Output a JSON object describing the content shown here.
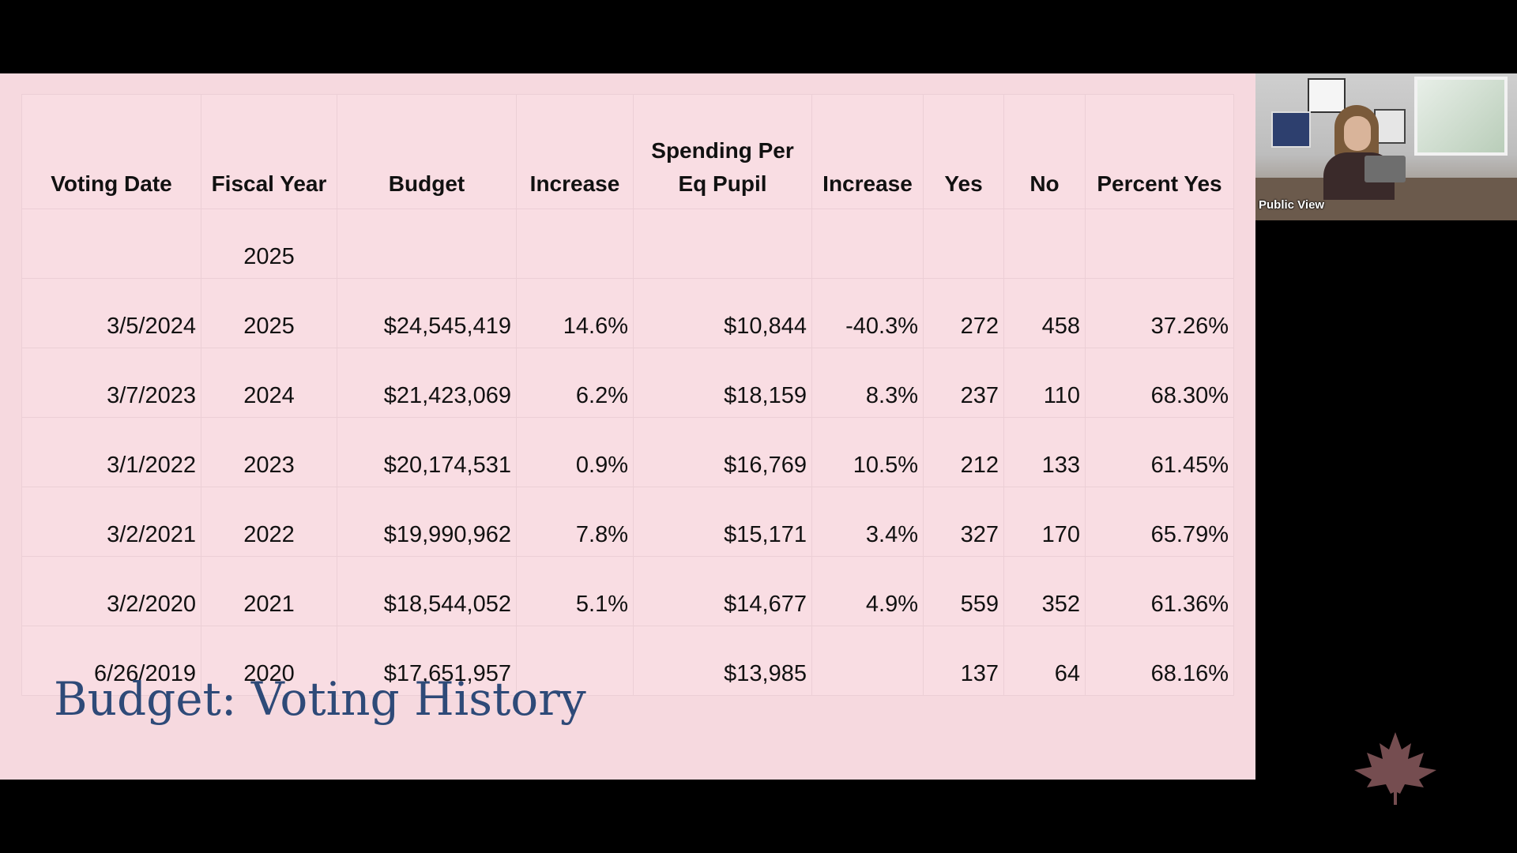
{
  "slide": {
    "title": "Budget: Voting History",
    "table": {
      "headers": [
        "Voting Date",
        "Fiscal Year",
        "Budget",
        "Increase",
        "Spending Per Eq Pupil",
        "Increase",
        "Yes",
        "No",
        "Percent Yes"
      ],
      "rows": [
        [
          "",
          "2025",
          "",
          "",
          "",
          "",
          "",
          "",
          ""
        ],
        [
          "3/5/2024",
          "2025",
          "$24,545,419",
          "14.6%",
          "$10,844",
          "-40.3%",
          "272",
          "458",
          "37.26%"
        ],
        [
          "3/7/2023",
          "2024",
          "$21,423,069",
          "6.2%",
          "$18,159",
          "8.3%",
          "237",
          "110",
          "68.30%"
        ],
        [
          "3/1/2022",
          "2023",
          "$20,174,531",
          "0.9%",
          "$16,769",
          "10.5%",
          "212",
          "133",
          "61.45%"
        ],
        [
          "3/2/2021",
          "2022",
          "$19,990,962",
          "7.8%",
          "$15,171",
          "3.4%",
          "327",
          "170",
          "65.79%"
        ],
        [
          "3/2/2020",
          "2021",
          "$18,544,052",
          "5.1%",
          "$14,677",
          "4.9%",
          "559",
          "352",
          "61.36%"
        ],
        [
          "6/26/2019",
          "2020",
          "$17,651,957",
          "",
          "$13,985",
          "",
          "137",
          "64",
          "68.16%"
        ]
      ]
    }
  },
  "video": {
    "label": "Public View"
  },
  "colors": {
    "slide_background": "#f6d9df",
    "title_color": "#2e4a78",
    "leaf_color": "#8a5a5e",
    "frame_background": "#000000"
  },
  "icons": {
    "logo": "maple-leaf-icon"
  }
}
